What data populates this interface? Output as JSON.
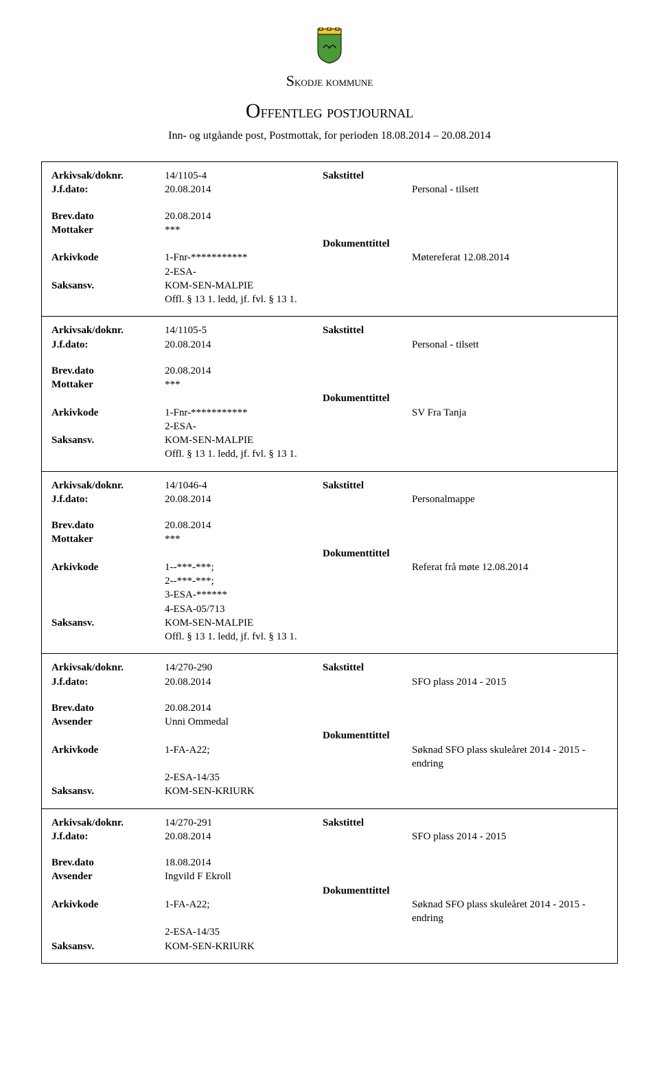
{
  "header": {
    "org_name": "Skodje kommune",
    "page_title": "Offentleg postjournal",
    "subtitle": "Inn- og utgåande post, Postmottak, for perioden 18.08.2014 – 20.08.2014"
  },
  "logo": {
    "crown_color": "#f0c830",
    "shield_color": "#4a9a3a",
    "stroke": "#000000"
  },
  "labels": {
    "arkivsak": "Arkivsak/doknr.",
    "jfdato": "J.f.dato:",
    "brevdato": "Brev.dato",
    "mottaker": "Mottaker",
    "avsender": "Avsender",
    "arkivkode": "Arkivkode",
    "saksansv": "Saksansv.",
    "sakstittel": "Sakstittel",
    "dokumenttittel": "Dokumenttittel"
  },
  "records": [
    {
      "arkivsak": "14/1105-4",
      "jfdato": "20.08.2014",
      "sakstittel": "Personal - tilsett",
      "brevdato": "20.08.2014",
      "party_label": "Mottaker",
      "party": "***",
      "arkivkode_lines": [
        "1-Fnr-***********",
        "2-ESA-"
      ],
      "dokumenttittel": "Møtereferat 12.08.2014",
      "saksansv": "KOM-SEN-MALPIE",
      "offl": "Offl. § 13 1. ledd, jf. fvl. § 13 1."
    },
    {
      "arkivsak": "14/1105-5",
      "jfdato": "20.08.2014",
      "sakstittel": "Personal - tilsett",
      "brevdato": "20.08.2014",
      "party_label": "Mottaker",
      "party": "***",
      "arkivkode_lines": [
        "1-Fnr-***********",
        "2-ESA-"
      ],
      "dokumenttittel": "SV Fra Tanja",
      "saksansv": "KOM-SEN-MALPIE",
      "offl": "Offl. § 13 1. ledd, jf. fvl. § 13 1."
    },
    {
      "arkivsak": "14/1046-4",
      "jfdato": "20.08.2014",
      "sakstittel": "Personalmappe",
      "brevdato": "20.08.2014",
      "party_label": "Mottaker",
      "party": "***",
      "arkivkode_lines": [
        "1--***-***;",
        "2--***-***;",
        "3-ESA-******",
        "4-ESA-05/713"
      ],
      "dokumenttittel": "Referat frå møte 12.08.2014",
      "saksansv": "KOM-SEN-MALPIE",
      "offl": "Offl. § 13 1. ledd, jf. fvl. § 13 1."
    },
    {
      "arkivsak": "14/270-290",
      "jfdato": "20.08.2014",
      "sakstittel": "SFO plass 2014 - 2015",
      "brevdato": "20.08.2014",
      "party_label": "Avsender",
      "party": "Unni Ommedal",
      "arkivkode_lines": [
        "1-FA-A22;",
        "2-ESA-14/35"
      ],
      "dokumenttittel": "Søknad SFO plass skuleåret 2014 - 2015 - endring",
      "saksansv": "KOM-SEN-KRIURK",
      "offl": ""
    },
    {
      "standalone": true,
      "arkivsak": "14/270-291",
      "jfdato": "20.08.2014",
      "sakstittel": "SFO plass 2014 - 2015",
      "brevdato": "18.08.2014",
      "party_label": "Avsender",
      "party": "Ingvild F Ekroll",
      "arkivkode_lines": [
        "1-FA-A22;",
        "2-ESA-14/35"
      ],
      "dokumenttittel": "Søknad SFO plass skuleåret 2014 - 2015 - endring",
      "saksansv": "KOM-SEN-KRIURK",
      "offl": ""
    }
  ]
}
